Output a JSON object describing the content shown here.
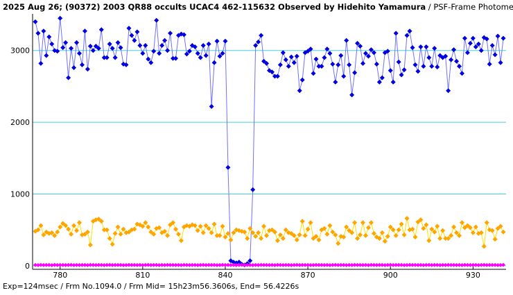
{
  "chart_data": {
    "type": "line",
    "title": "2025 Aug 26; (90372) 2003 QR88 occults UCAC4 462-115632 Observed by Hidehito Yamamura",
    "subtitle": " / PSF-Frame Photometry /",
    "footer": "Exp=124msec / Frm No.1094.0 / Frm Mid= 15h23m56.3606s, End= 56.4226s",
    "xlim": [
      770,
      942
    ],
    "xticks": [
      780,
      810,
      840,
      870,
      900,
      930
    ],
    "ylim": [
      -50,
      3510
    ],
    "yticks": [
      0,
      1000,
      2000,
      3000
    ],
    "grid": true,
    "x": [
      771,
      772,
      773,
      774,
      775,
      776,
      777,
      778,
      779,
      780,
      781,
      782,
      783,
      784,
      785,
      786,
      787,
      788,
      789,
      790,
      791,
      792,
      793,
      794,
      795,
      796,
      797,
      798,
      799,
      800,
      801,
      802,
      803,
      804,
      805,
      806,
      807,
      808,
      809,
      810,
      811,
      812,
      813,
      814,
      815,
      816,
      817,
      818,
      819,
      820,
      821,
      822,
      823,
      824,
      825,
      826,
      827,
      828,
      829,
      830,
      831,
      832,
      833,
      834,
      835,
      836,
      837,
      838,
      839,
      840,
      841,
      842,
      843,
      844,
      845,
      846,
      847,
      848,
      849,
      850,
      851,
      852,
      853,
      854,
      855,
      856,
      857,
      858,
      859,
      860,
      861,
      862,
      863,
      864,
      865,
      866,
      867,
      868,
      869,
      870,
      871,
      872,
      873,
      874,
      875,
      876,
      877,
      878,
      879,
      880,
      881,
      882,
      883,
      884,
      885,
      886,
      887,
      888,
      889,
      890,
      891,
      892,
      893,
      894,
      895,
      896,
      897,
      898,
      899,
      900,
      901,
      902,
      903,
      904,
      905,
      906,
      907,
      908,
      909,
      910,
      911,
      912,
      913,
      914,
      915,
      916,
      917,
      918,
      919,
      920,
      921,
      922,
      923,
      924,
      925,
      926,
      927,
      928,
      929,
      930,
      931,
      932,
      933,
      934,
      935,
      936,
      937,
      938,
      939,
      940,
      941
    ],
    "series": [
      {
        "color": "#0000e0",
        "line_color": "#7070ff",
        "values": [
          3400,
          3240,
          2820,
          3270,
          2930,
          3190,
          3090,
          3000,
          2990,
          3450,
          3040,
          3110,
          2620,
          3030,
          2760,
          3110,
          2960,
          2800,
          3270,
          2740,
          3060,
          3000,
          3060,
          3030,
          3290,
          2900,
          2900,
          3090,
          3030,
          2900,
          3110,
          3040,
          2810,
          2800,
          3310,
          3210,
          3140,
          3260,
          3070,
          2960,
          3070,
          2880,
          2830,
          2990,
          3420,
          2960,
          3070,
          3140,
          3000,
          3240,
          2890,
          2890,
          3210,
          3230,
          3220,
          2950,
          2990,
          3070,
          3050,
          2960,
          2900,
          3070,
          2930,
          3090,
          2220,
          2830,
          3130,
          2920,
          2960,
          3130,
          1370,
          70,
          50,
          40,
          50,
          20,
          10,
          30,
          70,
          1060,
          3070,
          3120,
          3210,
          2850,
          2820,
          2720,
          2700,
          2640,
          2640,
          2800,
          2970,
          2870,
          2780,
          2910,
          2830,
          2920,
          2440,
          2590,
          2970,
          2990,
          3020,
          2680,
          2880,
          2780,
          2780,
          2900,
          3020,
          2960,
          2810,
          2560,
          2800,
          2930,
          2640,
          3140,
          2800,
          2380,
          2690,
          3100,
          3060,
          2820,
          2960,
          2920,
          3010,
          2970,
          2810,
          2560,
          2620,
          2970,
          2990,
          2720,
          2560,
          3240,
          2840,
          2660,
          2730,
          3210,
          3270,
          3040,
          2800,
          2710,
          3050,
          2780,
          3050,
          2900,
          2780,
          3030,
          2770,
          2930,
          2900,
          2920,
          2440,
          2870,
          3010,
          2850,
          2780,
          2680,
          3170,
          2970,
          3100,
          3170,
          3050,
          3090,
          3000,
          3180,
          3160,
          2810,
          3070,
          2940,
          3200,
          2830,
          3170
        ]
      },
      {
        "color": "#ffa500",
        "line_color": "#ffe000",
        "values": [
          480,
          500,
          560,
          430,
          470,
          450,
          460,
          420,
          470,
          540,
          590,
          560,
          510,
          440,
          560,
          490,
          600,
          430,
          440,
          470,
          290,
          620,
          640,
          650,
          620,
          500,
          500,
          380,
          300,
          450,
          540,
          440,
          510,
          460,
          470,
          500,
          510,
          580,
          570,
          550,
          600,
          540,
          470,
          440,
          520,
          530,
          460,
          480,
          420,
          570,
          600,
          510,
          440,
          350,
          540,
          560,
          550,
          570,
          560,
          490,
          550,
          460,
          560,
          520,
          460,
          580,
          420,
          420,
          550,
          400,
          450,
          360,
          460,
          500,
          490,
          480,
          470,
          380,
          520,
          460,
          410,
          460,
          380,
          550,
          420,
          490,
          500,
          470,
          350,
          430,
          380,
          500,
          460,
          450,
          420,
          360,
          430,
          620,
          420,
          510,
          600,
          380,
          410,
          360,
          500,
          520,
          440,
          560,
          470,
          430,
          310,
          410,
          400,
          540,
          490,
          460,
          600,
          380,
          430,
          600,
          420,
          530,
          600,
          450,
          400,
          380,
          460,
          340,
          410,
          540,
          500,
          420,
          500,
          580,
          430,
          660,
          500,
          510,
          400,
          610,
          640,
          520,
          570,
          350,
          510,
          470,
          550,
          380,
          490,
          380,
          380,
          420,
          540,
          460,
          420,
          600,
          530,
          560,
          530,
          460,
          540,
          450,
          460,
          270,
          600,
          500,
          490,
          370,
          520,
          550,
          470
        ]
      },
      {
        "color": "#ff00ff",
        "line_color": "#ff00ff",
        "values": [
          10,
          8,
          12,
          9,
          11,
          10,
          7,
          12,
          9,
          10,
          11,
          9,
          10,
          12,
          8,
          10,
          9,
          11,
          10,
          8,
          12,
          10,
          9,
          11,
          10,
          8,
          10,
          12,
          9,
          10,
          11,
          10,
          8,
          9,
          12,
          10,
          11,
          9,
          10,
          8,
          10,
          12,
          9,
          11,
          10,
          8,
          10,
          9,
          12,
          10,
          11,
          9,
          10,
          8,
          12,
          10,
          9,
          11,
          10,
          8,
          10,
          12,
          9,
          10,
          11,
          10,
          8,
          9,
          12,
          10,
          11,
          9,
          10,
          8,
          10,
          12,
          9,
          11,
          10,
          8,
          10,
          9,
          12,
          10,
          11,
          9,
          10,
          8,
          12,
          10,
          9,
          11,
          10,
          8,
          10,
          12,
          9,
          10,
          11,
          10,
          8,
          9,
          12,
          10,
          11,
          9,
          10,
          8,
          10,
          12,
          9,
          11,
          10,
          8,
          10,
          9,
          12,
          10,
          11,
          9,
          10,
          8,
          12,
          10,
          9,
          11,
          10,
          8,
          10,
          12,
          9,
          10,
          11,
          10,
          8,
          9,
          12,
          10,
          11,
          9,
          10,
          8,
          10,
          12,
          9,
          11,
          10,
          8,
          10,
          9,
          12,
          10,
          11,
          9,
          10,
          8,
          12,
          10,
          9,
          11,
          10,
          8,
          10,
          12,
          9,
          10,
          11,
          10,
          8,
          9,
          12
        ]
      }
    ]
  }
}
